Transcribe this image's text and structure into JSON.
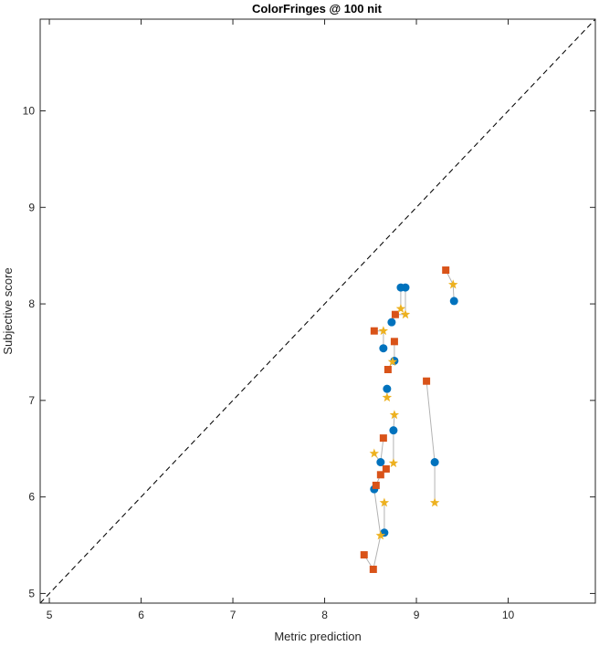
{
  "chart_data": {
    "type": "scatter",
    "title": "ColorFringes @ 100 nit",
    "xlabel": "Metric prediction",
    "ylabel": "Subjective score",
    "xlim": [
      4.9,
      10.95
    ],
    "ylim": [
      4.9,
      10.95
    ],
    "xticks": [
      5,
      6,
      7,
      8,
      9,
      10
    ],
    "yticks": [
      5,
      6,
      7,
      8,
      9,
      10
    ],
    "grid": false,
    "legend": "none",
    "reference_line": {
      "from": [
        4.9,
        4.9
      ],
      "to": [
        10.95,
        10.95
      ],
      "style": "dashed",
      "color": "#000000"
    },
    "connector_color": "#b3b3b3",
    "series": [
      {
        "marker": "circle",
        "color": "#0072BD",
        "points": [
          [
            8.83,
            8.17
          ],
          [
            8.88,
            8.17
          ],
          [
            9.41,
            8.03
          ],
          [
            8.73,
            7.81
          ],
          [
            8.64,
            7.54
          ],
          [
            8.76,
            7.41
          ],
          [
            8.68,
            7.12
          ],
          [
            8.75,
            6.69
          ],
          [
            9.2,
            6.36
          ],
          [
            8.61,
            6.36
          ],
          [
            8.54,
            6.08
          ],
          [
            8.65,
            5.63
          ]
        ]
      },
      {
        "marker": "square",
        "color": "#D95319",
        "points": [
          [
            9.32,
            8.35
          ],
          [
            8.77,
            7.89
          ],
          [
            8.54,
            7.72
          ],
          [
            8.76,
            7.61
          ],
          [
            8.69,
            7.32
          ],
          [
            9.11,
            7.2
          ],
          [
            8.64,
            6.61
          ],
          [
            8.67,
            6.29
          ],
          [
            8.61,
            6.23
          ],
          [
            8.56,
            6.12
          ],
          [
            8.43,
            5.4
          ],
          [
            8.53,
            5.25
          ]
        ]
      },
      {
        "marker": "star",
        "color": "#EDB120",
        "points": [
          [
            9.4,
            8.2
          ],
          [
            8.83,
            7.95
          ],
          [
            8.88,
            7.89
          ],
          [
            8.64,
            7.72
          ],
          [
            8.74,
            7.4
          ],
          [
            8.68,
            7.03
          ],
          [
            8.76,
            6.85
          ],
          [
            8.54,
            6.45
          ],
          [
            8.75,
            6.35
          ],
          [
            8.65,
            5.94
          ],
          [
            9.2,
            5.94
          ],
          [
            8.61,
            5.6
          ]
        ]
      }
    ],
    "connections": [
      [
        [
          9.32,
          8.35
        ],
        [
          9.4,
          8.2
        ],
        [
          9.41,
          8.03
        ]
      ],
      [
        [
          8.83,
          8.17
        ],
        [
          8.83,
          7.95
        ],
        [
          8.77,
          7.89
        ],
        [
          8.73,
          7.81
        ]
      ],
      [
        [
          8.88,
          8.17
        ],
        [
          8.88,
          7.89
        ],
        [
          8.77,
          7.89
        ]
      ],
      [
        [
          8.54,
          7.72
        ],
        [
          8.64,
          7.72
        ],
        [
          8.64,
          7.54
        ]
      ],
      [
        [
          8.76,
          7.61
        ],
        [
          8.76,
          7.41
        ],
        [
          8.74,
          7.4
        ],
        [
          8.69,
          7.32
        ]
      ],
      [
        [
          8.68,
          7.12
        ],
        [
          8.68,
          7.03
        ]
      ],
      [
        [
          9.11,
          7.2
        ],
        [
          9.2,
          6.36
        ],
        [
          9.2,
          5.94
        ]
      ],
      [
        [
          8.76,
          6.85
        ],
        [
          8.75,
          6.69
        ],
        [
          8.75,
          6.35
        ]
      ],
      [
        [
          8.64,
          6.61
        ],
        [
          8.61,
          6.36
        ],
        [
          8.54,
          6.45
        ]
      ],
      [
        [
          8.67,
          6.29
        ],
        [
          8.61,
          6.23
        ],
        [
          8.56,
          6.12
        ],
        [
          8.54,
          6.08
        ]
      ],
      [
        [
          8.54,
          6.08
        ],
        [
          8.61,
          5.6
        ],
        [
          8.65,
          5.63
        ],
        [
          8.65,
          5.94
        ]
      ],
      [
        [
          8.43,
          5.4
        ],
        [
          8.53,
          5.25
        ],
        [
          8.61,
          5.6
        ]
      ]
    ]
  }
}
